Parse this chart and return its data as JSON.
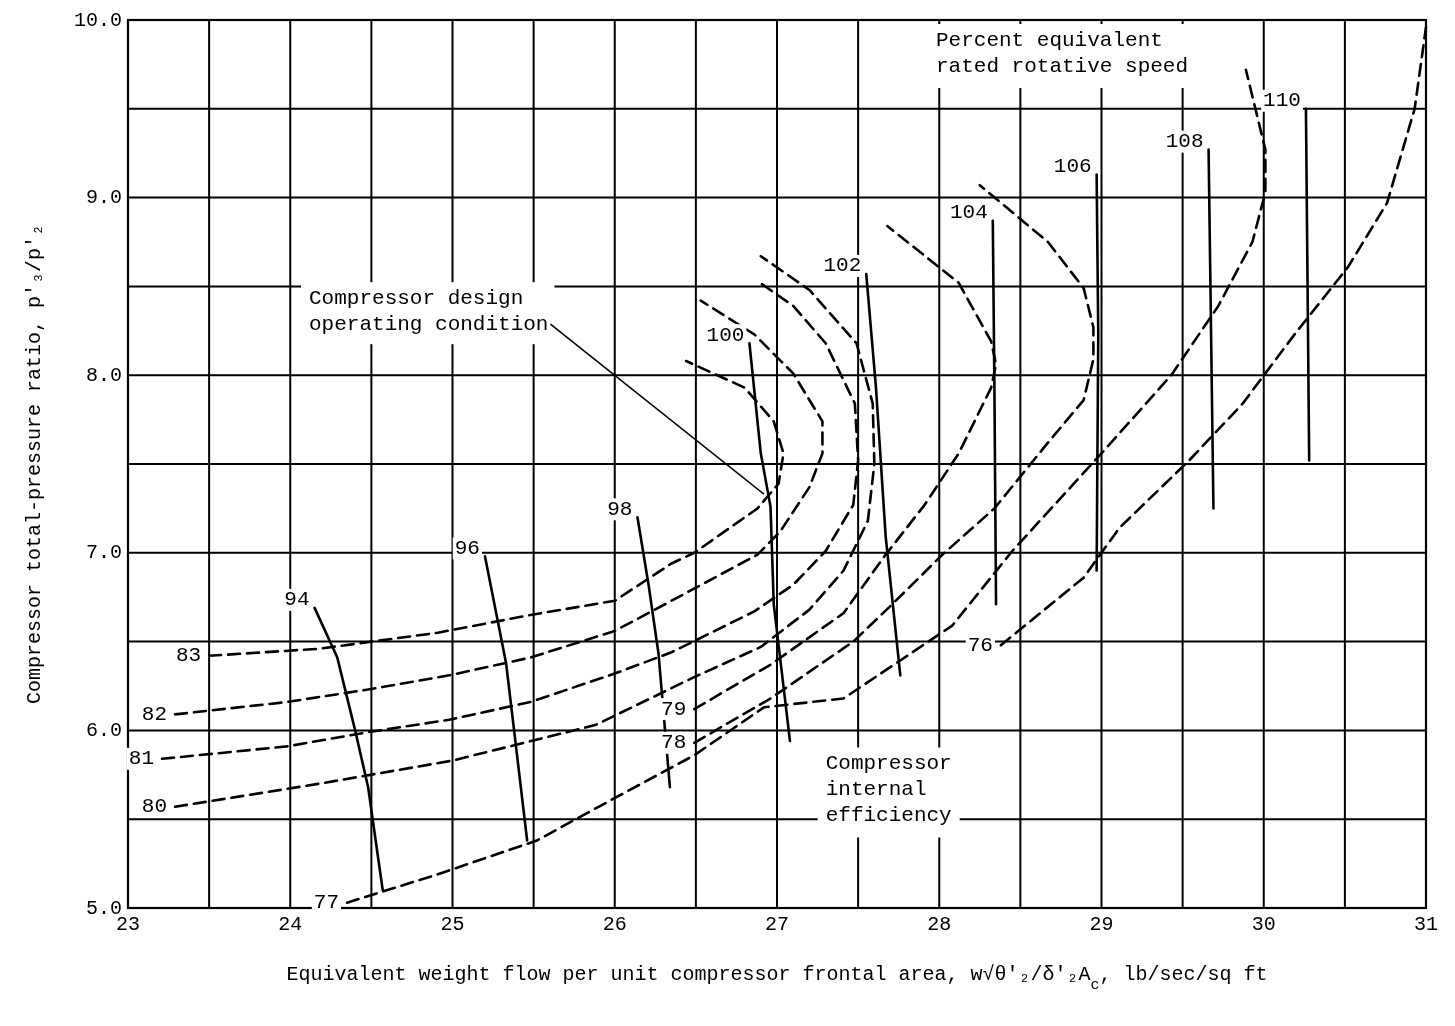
{
  "chart_data": {
    "type": "line",
    "xlabel": "Equivalent weight flow per unit compressor frontal area, w√θ'₂/δ'₂A$_{c}$, lb/sec/sq ft",
    "ylabel": "Compressor total-pressure ratio, p'₃/p'₂",
    "xlim": [
      23,
      31
    ],
    "ylim": [
      5,
      10
    ],
    "grid": true,
    "xticks": [
      23,
      {
        "value": 23.5,
        "label": null
      },
      24,
      {
        "value": 24.5,
        "label": null
      },
      25,
      {
        "value": 25.5,
        "label": null
      },
      26,
      {
        "value": 26.5,
        "label": null
      },
      27,
      {
        "value": 27.5,
        "label": null
      },
      28,
      {
        "value": 28.5,
        "label": null
      },
      29,
      {
        "value": 29.5,
        "label": null
      },
      30,
      {
        "value": 30.5,
        "label": null
      },
      31
    ],
    "yticks": [
      {
        "value": 5,
        "label": "5.0"
      },
      {
        "value": 5.5,
        "label": null
      },
      {
        "value": 6,
        "label": "6.0"
      },
      {
        "value": 6.5,
        "label": null
      },
      {
        "value": 7,
        "label": "7.0"
      },
      {
        "value": 7.5,
        "label": null
      },
      {
        "value": 8,
        "label": "8.0"
      },
      {
        "value": 8.5,
        "label": null
      },
      {
        "value": 9,
        "label": "9.0"
      },
      {
        "value": 9.5,
        "label": null
      },
      {
        "value": 10,
        "label": "10.0"
      }
    ],
    "series": [
      {
        "name": "83",
        "color": "#000000",
        "line_style": "dashed",
        "x": [
          23.5,
          24.18,
          24.91,
          25.48,
          26.0,
          26.35,
          26.49,
          26.88,
          27.01,
          27.04,
          26.98,
          26.8,
          26.44
        ],
        "values": [
          6.42,
          6.46,
          6.55,
          6.65,
          6.73,
          6.94,
          7.0,
          7.25,
          7.39,
          7.56,
          7.74,
          7.93,
          8.08
        ]
      },
      {
        "name": "82",
        "color": "#000000",
        "line_style": "dashed",
        "x": [
          23.29,
          23.98,
          24.48,
          24.98,
          25.48,
          26.0,
          26.35,
          26.88,
          27.02,
          27.2,
          27.28,
          27.28,
          27.1,
          26.86,
          26.53
        ],
        "values": [
          6.09,
          6.16,
          6.23,
          6.31,
          6.41,
          6.56,
          6.73,
          6.99,
          7.12,
          7.37,
          7.56,
          7.74,
          8.01,
          8.23,
          8.42
        ]
      },
      {
        "name": "81",
        "color": "#000000",
        "line_style": "dashed",
        "x": [
          23.21,
          23.98,
          24.48,
          24.98,
          25.48,
          26.0,
          26.35,
          26.86,
          27.1,
          27.3,
          27.47,
          27.5,
          27.48,
          27.3,
          27.1,
          26.88
        ],
        "values": [
          5.84,
          5.91,
          5.99,
          6.06,
          6.16,
          6.32,
          6.44,
          6.67,
          6.82,
          7.01,
          7.27,
          7.52,
          7.84,
          8.18,
          8.39,
          8.53
        ]
      },
      {
        "name": "80",
        "color": "#000000",
        "line_style": "dashed",
        "x": [
          23.29,
          24.18,
          25.0,
          25.88,
          26.49,
          26.9,
          27.2,
          27.41,
          27.56,
          27.6,
          27.59,
          27.49,
          27.2,
          26.9
        ],
        "values": [
          5.57,
          5.7,
          5.83,
          6.03,
          6.3,
          6.47,
          6.68,
          6.9,
          7.18,
          7.5,
          7.84,
          8.18,
          8.48,
          8.67
        ]
      },
      {
        "name": "79",
        "color": "#000000",
        "line_style": "dashed",
        "x": [
          26.49,
          26.96,
          27.41,
          27.67,
          27.91,
          28.12,
          28.32,
          28.35,
          28.32,
          28.12,
          27.68
        ],
        "values": [
          6.12,
          6.37,
          6.66,
          6.99,
          7.27,
          7.56,
          7.93,
          8.06,
          8.19,
          8.52,
          8.84
        ]
      },
      {
        "name": "78",
        "color": "#000000",
        "line_style": "dashed",
        "x": [
          26.49,
          26.96,
          27.47,
          27.71,
          28.02,
          28.34,
          28.67,
          28.89,
          28.95,
          28.95,
          28.89,
          28.67,
          28.25
        ],
        "values": [
          5.93,
          6.18,
          6.5,
          6.71,
          6.99,
          7.25,
          7.62,
          7.86,
          8.09,
          8.27,
          8.49,
          8.75,
          9.07
        ]
      },
      {
        "name": "77",
        "color": "#000000",
        "line_style": "dashed",
        "x": [
          24.35,
          24.91,
          25.52,
          25.88,
          26.49,
          26.92,
          27.41,
          28.08,
          28.45,
          29.0,
          29.43,
          29.72,
          29.93,
          30.01,
          30.01,
          29.89
        ],
        "values": [
          5.03,
          5.19,
          5.38,
          5.56,
          5.86,
          6.13,
          6.18,
          6.59,
          7.01,
          7.56,
          8.0,
          8.39,
          8.75,
          9.03,
          9.27,
          9.72
        ]
      },
      {
        "name": "76",
        "color": "#000000",
        "line_style": "dashed",
        "x": [
          28.38,
          28.89,
          29.11,
          29.54,
          29.87,
          30.19,
          30.52,
          30.76,
          30.93,
          31.0
        ],
        "values": [
          6.48,
          6.86,
          7.14,
          7.52,
          7.84,
          8.23,
          8.61,
          8.97,
          9.5,
          9.96
        ]
      },
      {
        "name": "94",
        "color": "#000000",
        "line_style": "solid",
        "x": [
          24.15,
          24.29,
          24.4,
          24.48,
          24.57
        ],
        "values": [
          6.69,
          6.41,
          6.0,
          5.68,
          5.1
        ]
      },
      {
        "name": "96",
        "color": "#000000",
        "line_style": "solid",
        "x": [
          25.2,
          25.33,
          25.39,
          25.46
        ],
        "values": [
          6.98,
          6.38,
          5.92,
          5.38
        ]
      },
      {
        "name": "98",
        "color": "#000000",
        "line_style": "solid",
        "x": [
          26.14,
          26.21,
          26.27,
          26.34
        ],
        "values": [
          7.2,
          6.81,
          6.43,
          5.68
        ]
      },
      {
        "name": "100",
        "color": "#000000",
        "line_style": "solid",
        "x": [
          26.83,
          26.9,
          26.96,
          26.98,
          27.08
        ],
        "values": [
          8.18,
          7.56,
          7.26,
          6.71,
          5.94
        ]
      },
      {
        "name": "102",
        "color": "#000000",
        "line_style": "solid",
        "x": [
          27.55,
          27.61,
          27.67,
          27.76
        ],
        "values": [
          8.57,
          7.93,
          7.09,
          6.31
        ]
      },
      {
        "name": "104",
        "color": "#000000",
        "line_style": "solid",
        "x": [
          28.33,
          28.34,
          28.35
        ],
        "values": [
          8.87,
          7.93,
          6.71
        ]
      },
      {
        "name": "106",
        "color": "#000000",
        "line_style": "solid",
        "x": [
          28.97,
          28.98,
          28.97
        ],
        "values": [
          9.13,
          8.23,
          6.9
        ]
      },
      {
        "name": "108",
        "color": "#000000",
        "line_style": "solid",
        "x": [
          29.66,
          29.69
        ],
        "values": [
          9.27,
          7.25
        ]
      },
      {
        "name": "110",
        "color": "#000000",
        "line_style": "solid",
        "x": [
          30.26,
          30.28
        ],
        "values": [
          9.5,
          7.52
        ]
      }
    ],
    "annotations": [
      {
        "text": "Compressor design\noperating condition",
        "x": 26.92,
        "y": 7.33
      },
      "Percent equivalent\nrated rotative speed",
      "Compressor\ninternal\nefficiency"
    ]
  }
}
